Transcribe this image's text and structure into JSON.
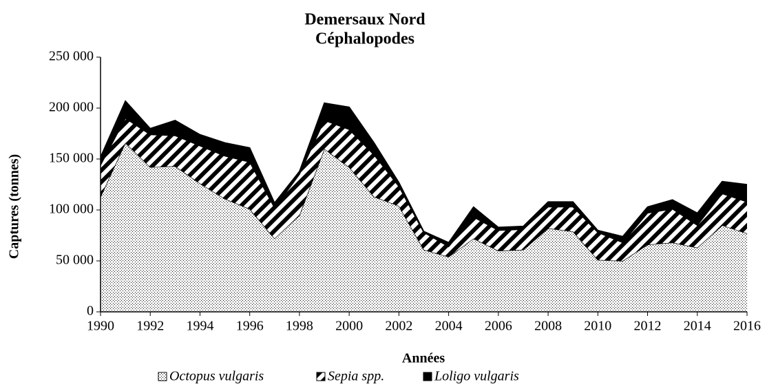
{
  "chart_data": {
    "type": "stacked_area",
    "title": "Demersaux Nord",
    "subtitle": "Céphalopodes",
    "xlabel": "Années",
    "ylabel": "Captures (tonnes)",
    "x": [
      1990,
      1991,
      1992,
      1993,
      1994,
      1995,
      1996,
      1997,
      1998,
      1999,
      2000,
      2001,
      2002,
      2003,
      2004,
      2005,
      2006,
      2007,
      2008,
      2009,
      2010,
      2011,
      2012,
      2013,
      2014,
      2015,
      2016
    ],
    "series": [
      {
        "name": "Octopus vulgaris",
        "color": "#000000",
        "pattern": "dots",
        "values": [
          113000,
          166000,
          142000,
          143000,
          126000,
          111000,
          101000,
          72000,
          95000,
          160000,
          142000,
          113000,
          104000,
          61000,
          54000,
          72000,
          60000,
          61000,
          82000,
          79000,
          51000,
          50000,
          66000,
          68000,
          63000,
          85000,
          77000
        ]
      },
      {
        "name": "Sepia spp.",
        "color": "#000000",
        "pattern": "stripes",
        "values": [
          31000,
          24000,
          32000,
          30000,
          37000,
          42000,
          46000,
          30000,
          40000,
          28000,
          37000,
          41000,
          19000,
          17000,
          10000,
          21000,
          20000,
          20000,
          21000,
          24000,
          27000,
          18000,
          31000,
          33000,
          22000,
          31000,
          31000
        ]
      },
      {
        "name": "Loligo vulgaris",
        "color": "#000000",
        "pattern": "solid",
        "values": [
          8000,
          17000,
          6000,
          15000,
          11000,
          13000,
          14000,
          5000,
          3000,
          17000,
          22000,
          12000,
          4000,
          1000,
          4000,
          10000,
          3000,
          3000,
          5000,
          5000,
          2000,
          6000,
          6000,
          9000,
          12000,
          12000,
          17000
        ]
      }
    ],
    "xlim": [
      1990,
      2016
    ],
    "xticks": [
      1990,
      1992,
      1994,
      1996,
      1998,
      2000,
      2002,
      2004,
      2006,
      2008,
      2010,
      2012,
      2014,
      2016
    ],
    "ylim": [
      0,
      250000
    ],
    "yticks": [
      0,
      {
        "value": 50000,
        "label": "50 000"
      },
      {
        "value": 100000,
        "label": "100 000"
      },
      {
        "value": 150000,
        "label": "150 000"
      },
      {
        "value": 200000,
        "label": "200 000"
      },
      {
        "value": 250000,
        "label": "250 000"
      }
    ],
    "legend": "bottom"
  }
}
